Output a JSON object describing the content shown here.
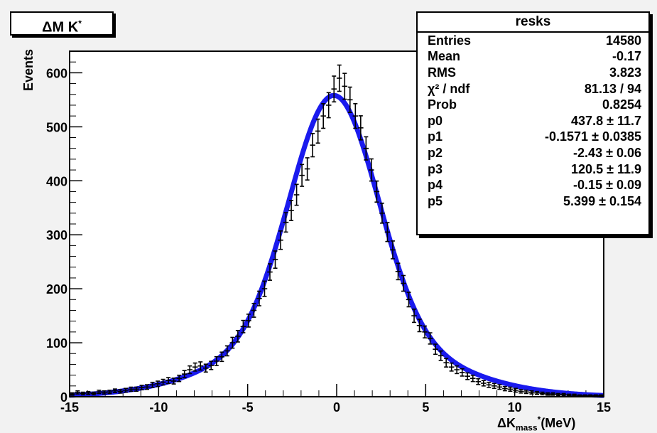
{
  "title_box": {
    "text": "ΔM K",
    "sup": "*"
  },
  "stats": {
    "name": "resks",
    "rows": [
      {
        "label": "Entries",
        "value": "14580"
      },
      {
        "label": "Mean",
        "value": "-0.17"
      },
      {
        "label": "RMS",
        "value": "3.823"
      },
      {
        "label": "χ² / ndf",
        "value": "81.13 / 94"
      },
      {
        "label": "Prob",
        "value": "0.8254"
      },
      {
        "label": "p0",
        "value": "437.8 ± 11.7"
      },
      {
        "label": "p1",
        "value": "-0.1571 ± 0.0385"
      },
      {
        "label": "p2",
        "value": "-2.43 ± 0.06"
      },
      {
        "label": "p3",
        "value": "120.5 ± 11.9"
      },
      {
        "label": "p4",
        "value": "-0.15 ± 0.09"
      },
      {
        "label": "p5",
        "value": "5.399 ± 0.154"
      }
    ]
  },
  "colors": {
    "fit": "#1a1aee",
    "points": "#000000",
    "frame": "#000000",
    "background": "#ffffff"
  },
  "chart_data": {
    "type": "scatter",
    "title": "",
    "xlabel_main": "ΔK",
    "xlabel_sub": "mass",
    "xlabel_sup": "*",
    "xlabel_unit": "(MeV)",
    "ylabel": "Events",
    "xlim": [
      -15,
      15
    ],
    "ylim": [
      0,
      640
    ],
    "x_ticks": [
      -15,
      -10,
      -5,
      0,
      5,
      10,
      15
    ],
    "y_ticks": [
      0,
      100,
      200,
      300,
      400,
      500,
      600
    ],
    "x_tick_labels": [
      "-15",
      "-10",
      "-5",
      "0",
      "5",
      "10",
      "15"
    ],
    "y_tick_labels": [
      "0",
      "100",
      "200",
      "300",
      "400",
      "500",
      "600"
    ],
    "grid": false,
    "bin_width": 0.3,
    "series": [
      {
        "kind": "data_points_with_errors",
        "x": [
          -14.85,
          -14.55,
          -14.25,
          -13.95,
          -13.65,
          -13.35,
          -13.05,
          -12.75,
          -12.45,
          -12.15,
          -11.85,
          -11.55,
          -11.25,
          -10.95,
          -10.65,
          -10.35,
          -10.05,
          -9.75,
          -9.45,
          -9.15,
          -8.85,
          -8.55,
          -8.25,
          -7.95,
          -7.65,
          -7.35,
          -7.05,
          -6.75,
          -6.45,
          -6.15,
          -5.85,
          -5.55,
          -5.25,
          -4.95,
          -4.65,
          -4.35,
          -4.05,
          -3.75,
          -3.45,
          -3.15,
          -2.85,
          -2.55,
          -2.25,
          -1.95,
          -1.65,
          -1.35,
          -1.05,
          -0.75,
          -0.45,
          -0.15,
          0.15,
          0.45,
          0.75,
          1.05,
          1.35,
          1.65,
          1.95,
          2.25,
          2.55,
          2.85,
          3.15,
          3.45,
          3.75,
          4.05,
          4.35,
          4.65,
          4.95,
          5.25,
          5.55,
          5.85,
          6.15,
          6.45,
          6.75,
          7.05,
          7.35,
          7.65,
          7.95,
          8.25,
          8.55,
          8.85,
          9.15,
          9.45,
          9.75,
          10.05,
          10.35,
          10.65,
          10.95,
          11.25,
          11.55,
          11.85,
          12.15,
          12.45,
          12.75,
          13.05,
          13.35,
          13.65,
          13.95,
          14.25,
          14.55,
          14.85
        ],
        "y": [
          5,
          8,
          6,
          7,
          6,
          9,
          8,
          9,
          11,
          10,
          12,
          14,
          14,
          17,
          18,
          22,
          24,
          27,
          30,
          29,
          34,
          42,
          50,
          55,
          57,
          53,
          58,
          66,
          74,
          85,
          100,
          112,
          130,
          141,
          160,
          182,
          200,
          231,
          254,
          290,
          323,
          345,
          374,
          410,
          422,
          466,
          492,
          520,
          540,
          570,
          590,
          575,
          550,
          520,
          498,
          460,
          420,
          380,
          340,
          305,
          272,
          232,
          210,
          180,
          150,
          132,
          120,
          108,
          88,
          76,
          63,
          55,
          50,
          45,
          38,
          34,
          28,
          25,
          22,
          20,
          18,
          15,
          14,
          12,
          10,
          9,
          8,
          7,
          6,
          5,
          5,
          4,
          4,
          3,
          3,
          2,
          2,
          2,
          2,
          2
        ],
        "yerr_note": "sqrt(N)"
      },
      {
        "kind": "fit",
        "description_params": {
          "p0": 437.8,
          "p1": -0.1571,
          "p2": -2.43,
          "p3": 120.5,
          "p4": -0.15,
          "p5": 5.399
        },
        "peak": 558
      }
    ]
  }
}
